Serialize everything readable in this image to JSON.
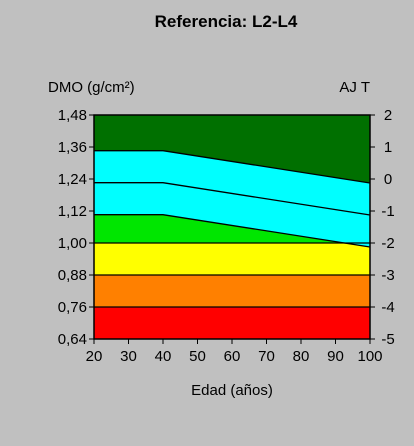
{
  "chart_data": {
    "type": "area",
    "title": "Referencia: L2-L4",
    "ylabel": "DMO (g/cm²)",
    "ylabel_right": "AJ T",
    "xlabel": "Edad (años)",
    "xlim": [
      20,
      100
    ],
    "ylim": [
      0.64,
      1.48
    ],
    "x_ticks": [
      "20",
      "30",
      "40",
      "50",
      "60",
      "70",
      "80",
      "90",
      "100"
    ],
    "y_ticks": [
      "1,48",
      "1,36",
      "1,24",
      "1,12",
      "1,00",
      "0,88",
      "0,76",
      "0,64"
    ],
    "y_tick_values": [
      1.48,
      1.36,
      1.24,
      1.12,
      1.0,
      0.88,
      0.76,
      0.64
    ],
    "t_ticks": [
      "2",
      "1",
      "0",
      "-1",
      "-2",
      "-3",
      "-4",
      "-5"
    ],
    "t_range": [
      2,
      -5
    ],
    "bands": [
      {
        "name": "rojo",
        "color": "#ff0000",
        "lower": 0.64,
        "upper": 0.76
      },
      {
        "name": "naranja",
        "color": "#ff8000",
        "lower": 0.76,
        "upper": 0.88
      },
      {
        "name": "amarillo",
        "color": "#ffff00",
        "lower": 0.88,
        "upper": 1.0
      },
      {
        "name": "verde",
        "color": "#00e600",
        "lower": 1.0,
        "upper_line": "line_low"
      },
      {
        "name": "cian",
        "color": "#00ffff",
        "lower_line": "line_low",
        "upper_line": "line_high"
      },
      {
        "name": "verde oscuro",
        "color": "#007000",
        "lower_line": "line_high",
        "upper": 1.48
      }
    ],
    "series": [
      {
        "id": "line_low",
        "x": [
          20,
          40,
          100
        ],
        "values": [
          1.106,
          1.106,
          0.985
        ]
      },
      {
        "id": "line_mid",
        "x": [
          20,
          40,
          100
        ],
        "values": [
          1.226,
          1.226,
          1.105
        ]
      },
      {
        "id": "line_high",
        "x": [
          20,
          40,
          100
        ],
        "values": [
          1.346,
          1.346,
          1.225
        ]
      }
    ],
    "grid": false
  }
}
